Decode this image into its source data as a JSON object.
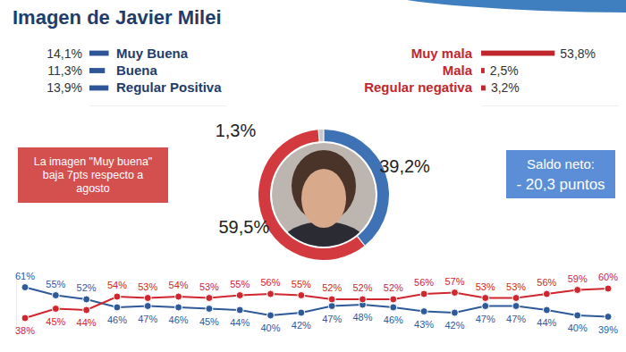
{
  "chart_data": [
    {
      "type": "pie",
      "title": "Imagen de Javier Milei",
      "values": [
        39.2,
        59.5,
        1.3
      ],
      "value_labels": [
        "39,2%",
        "59,5%",
        "1,3%"
      ],
      "colors": [
        "#3f72b5",
        "#d33a3f",
        "#c8c8c8"
      ],
      "data_labels": true,
      "annotations": [
        "La imagen \"Muy buena\" baja 7pts respecto a agosto",
        "Saldo neto:",
        "- 20,3 puntos"
      ]
    },
    {
      "type": "bar",
      "orientation": "horizontal",
      "categories": [
        "Muy Buena",
        "Buena",
        "Regular Positiva"
      ],
      "values": [
        14.1,
        11.3,
        13.9
      ],
      "value_labels": [
        "14,1%",
        "11,3%",
        "13,9%"
      ],
      "color": "#2f5597",
      "xlim": [
        0,
        100
      ],
      "tick_labels": false,
      "data_labels": true
    },
    {
      "type": "bar",
      "orientation": "horizontal",
      "categories": [
        "Muy mala",
        "Mala",
        "Regular negativa"
      ],
      "values": [
        53.8,
        2.5,
        3.2
      ],
      "value_labels": [
        "53,8%",
        "2,5%",
        "3,2%"
      ],
      "color": "#c0272d",
      "xlim": [
        0,
        100
      ],
      "tick_labels": false,
      "data_labels": true
    },
    {
      "type": "line",
      "categories": [
        null,
        null,
        null,
        null,
        null,
        null,
        null,
        null,
        null,
        null,
        null,
        null,
        null,
        null,
        null,
        null,
        null,
        null,
        null,
        null
      ],
      "series": [
        {
          "color": "#2f5a9a",
          "marker": "circle",
          "values": [
            61,
            55,
            52,
            46,
            47,
            46,
            45,
            44,
            40,
            42,
            47,
            48,
            46,
            43,
            42,
            47,
            47,
            44,
            40,
            39
          ],
          "value_labels": [
            "61%",
            "55%",
            "52%",
            "46%",
            "47%",
            "46%",
            "45%",
            "44%",
            "40%",
            "42%",
            "47%",
            "48%",
            "46%",
            "43%",
            "42%",
            "47%",
            "47%",
            "44%",
            "40%",
            "39%"
          ]
        },
        {
          "color": "#d0262e",
          "marker": "circle",
          "values": [
            38,
            45,
            44,
            54,
            53,
            54,
            53,
            55,
            56,
            55,
            52,
            52,
            52,
            56,
            57,
            53,
            53,
            56,
            59,
            60
          ],
          "value_labels": [
            "38%",
            "45%",
            "44%",
            "54%",
            "53%",
            "54%",
            "53%",
            "55%",
            "56%",
            "55%",
            "52%",
            "52%",
            "52%",
            "56%",
            "57%",
            "53%",
            "53%",
            "56%",
            "59%",
            "60%"
          ]
        }
      ],
      "ylim": [
        30,
        70
      ],
      "tick_labels": false,
      "data_labels": true
    }
  ]
}
